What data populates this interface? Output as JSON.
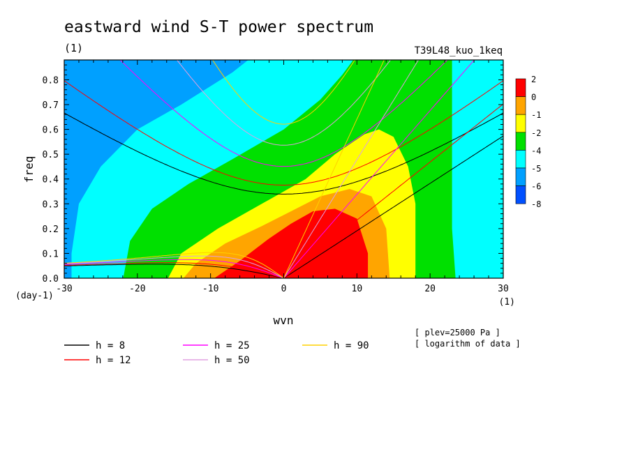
{
  "chart_data": {
    "type": "heatmap",
    "title": "eastward wind S-T power spectrum",
    "subtitle": "(1)",
    "experiment": "T39L48_kuo_1keq",
    "xlabel": "wvn",
    "x_unit": "(1)",
    "ylabel": "freq",
    "y_unit": "(day-1)",
    "xlim": [
      -30,
      30
    ],
    "ylim": [
      0,
      0.88
    ],
    "xticks": [
      "-30",
      "-20",
      "-10",
      "0",
      "10",
      "20",
      "30"
    ],
    "yticks": [
      "0.0",
      "0.1",
      "0.2",
      "0.3",
      "0.4",
      "0.5",
      "0.6",
      "0.7",
      "0.8"
    ],
    "grid": false,
    "colorbar": {
      "labels": [
        "2",
        "0",
        "-1",
        "-2",
        "-4",
        "-5",
        "-6",
        "-8"
      ],
      "levels": [
        2,
        0,
        -1,
        -2,
        -4,
        -5,
        -6,
        -8
      ],
      "colors": [
        "#ff0000",
        "#ffa500",
        "#ffff00",
        "#00e000",
        "#00ffff",
        "#00a0ff",
        "#0050ff"
      ]
    },
    "field_colors": {
      "c_ge0": "#ff0000",
      "c_m1": "#ffa500",
      "c_m2": "#ffff00",
      "c_m4": "#00e000",
      "c_m5": "#00ffff",
      "c_m6": "#00a0ff",
      "c_m8": "#0050ff"
    },
    "dispersion_curves": [
      {
        "name": "h =  8",
        "h": 8,
        "color": "#000000"
      },
      {
        "name": "h = 12",
        "h": 12,
        "color": "#ff0000"
      },
      {
        "name": "h = 25",
        "h": 25,
        "color": "#ff00ff"
      },
      {
        "name": "h = 50",
        "h": 50,
        "color": "#e0a0e0"
      },
      {
        "name": "h = 90",
        "h": 90,
        "color": "#ffd000"
      }
    ],
    "notes": [
      "[ plev=25000 Pa ]",
      "[ logarithm of data ]"
    ]
  }
}
